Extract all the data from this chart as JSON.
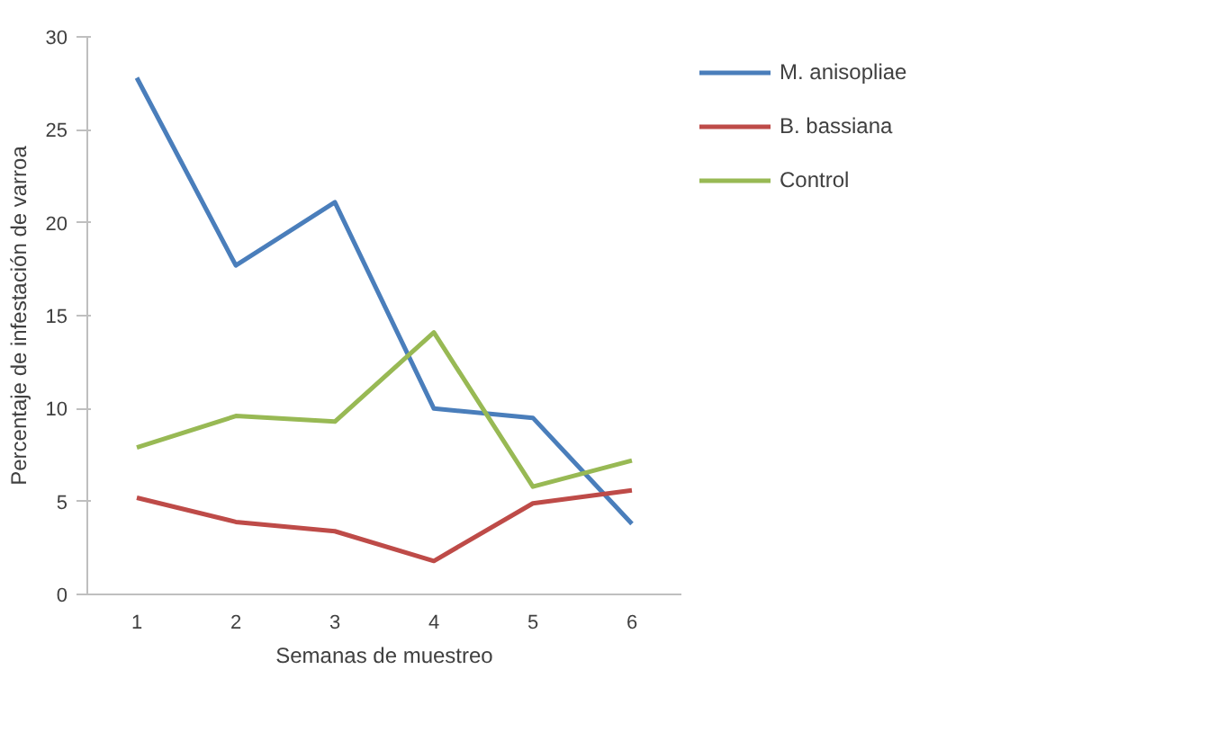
{
  "chart_data": {
    "type": "line",
    "xlabel": "Semanas de muestreo",
    "ylabel": "Percentaje de infestación de varroa",
    "categories": [
      "1",
      "2",
      "3",
      "4",
      "5",
      "6"
    ],
    "series": [
      {
        "name": "M. anisopliae",
        "color": "#4a7ebb",
        "values": [
          27.8,
          17.7,
          21.1,
          10.0,
          9.5,
          3.8
        ]
      },
      {
        "name": "B. bassiana",
        "color": "#be4b48",
        "values": [
          5.2,
          3.9,
          3.4,
          1.8,
          4.9,
          5.6
        ]
      },
      {
        "name": "Control",
        "color": "#98b954",
        "values": [
          7.9,
          9.6,
          9.3,
          14.1,
          5.8,
          7.2
        ]
      }
    ],
    "ylim": [
      0,
      30
    ],
    "yticks": [
      0,
      5,
      10,
      15,
      20,
      25,
      30
    ],
    "grid": false,
    "legend": "top right",
    "marker": "none",
    "line_style": "solid"
  }
}
